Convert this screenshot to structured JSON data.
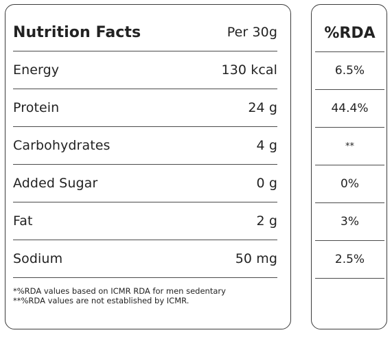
{
  "facts": {
    "title": "Nutrition Facts",
    "serving": "Per 30g",
    "rows": [
      {
        "label": "Energy",
        "value": "130 kcal"
      },
      {
        "label": "Protein",
        "value": "24 g"
      },
      {
        "label": "Carbohydrates",
        "value": "4 g"
      },
      {
        "label": "Added Sugar",
        "value": "0 g"
      },
      {
        "label": "Fat",
        "value": "2 g"
      },
      {
        "label": "Sodium",
        "value": "50 mg"
      }
    ],
    "footnotes": [
      "*%RDA values based on ICMR RDA for men sedentary",
      "**%RDA values are not established by ICMR."
    ]
  },
  "rda": {
    "header": "%RDA",
    "values": [
      "6.5%",
      "44.4%",
      "**",
      "0%",
      "3%",
      "2.5%"
    ]
  }
}
